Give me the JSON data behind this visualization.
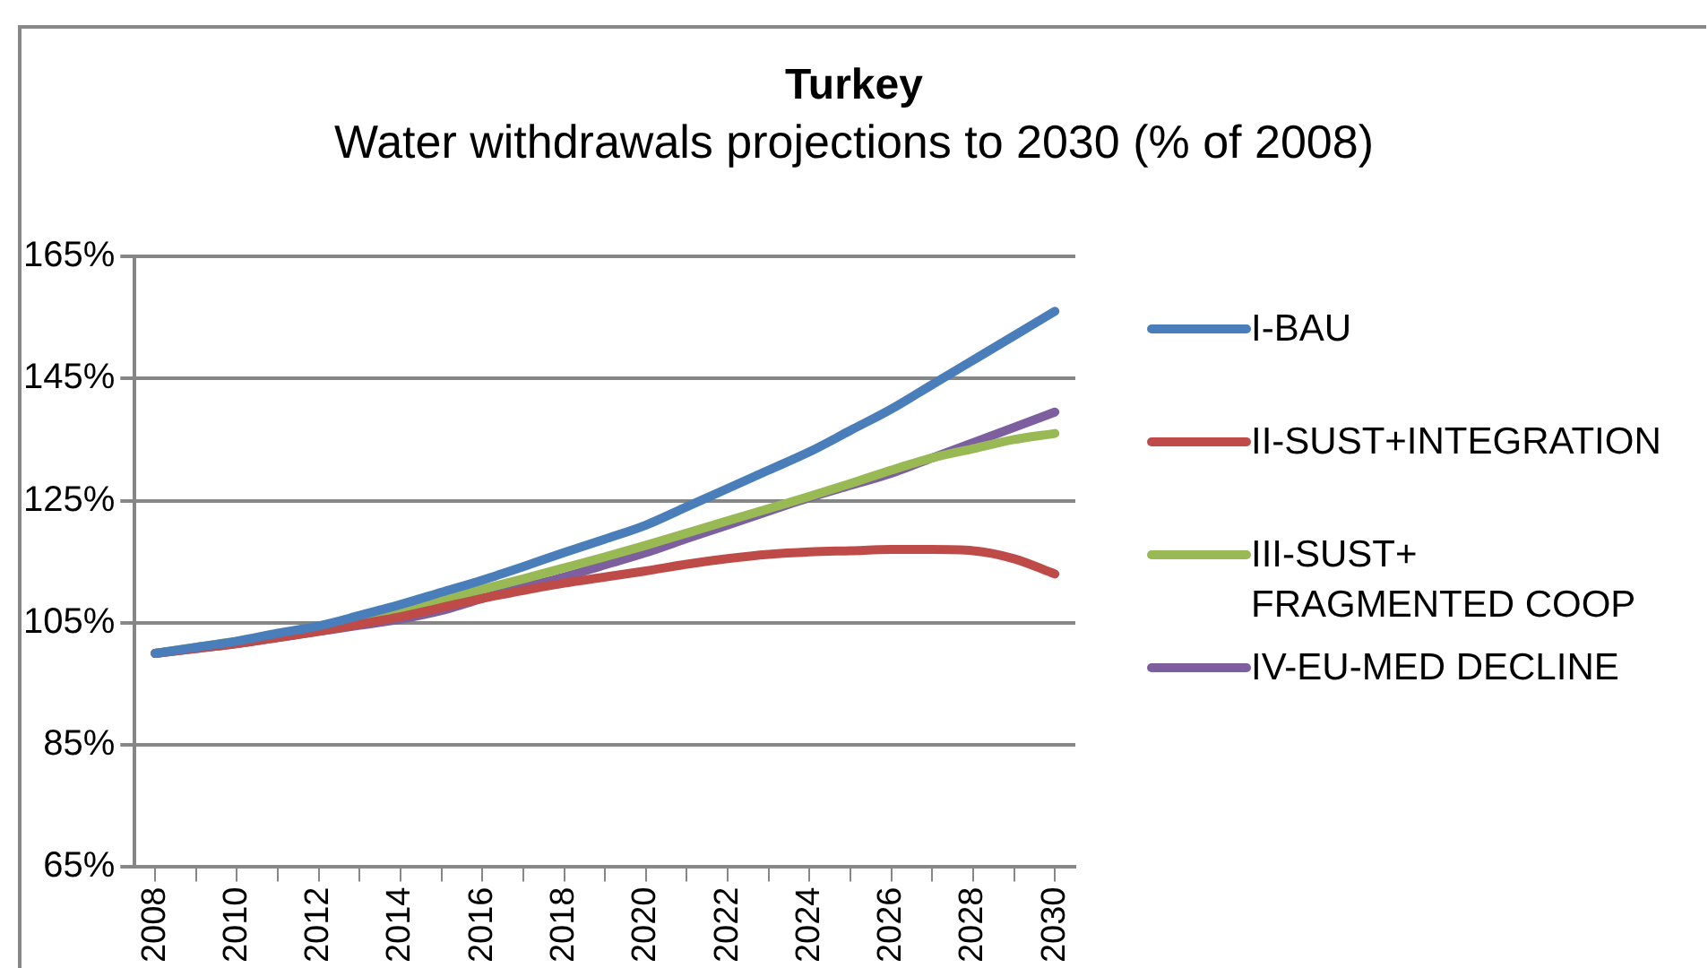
{
  "chart_data": {
    "type": "line",
    "title": "Turkey",
    "subtitle": "Water withdrawals projections to 2030 (% of 2008)",
    "categories": [
      "2008",
      null,
      "2010",
      null,
      "2012",
      null,
      "2014",
      null,
      "2016",
      null,
      "2018",
      null,
      "2020",
      null,
      "2022",
      null,
      "2024",
      null,
      "2026",
      null,
      "2028",
      null,
      "2030"
    ],
    "series": [
      {
        "name": "I-BAU",
        "color": "#4a7ebb",
        "values": [
          100,
          101,
          102,
          103.3,
          104.5,
          106.2,
          108,
          110,
          112,
          114.2,
          116.5,
          118.7,
          121,
          124,
          127,
          130,
          133,
          136.5,
          140,
          144,
          148,
          152,
          156
        ]
      },
      {
        "name": "II-SUST+INTEGRATION",
        "color": "#be4b48",
        "values": [
          100,
          100.8,
          101.6,
          102.6,
          103.6,
          104.8,
          106,
          107.5,
          109,
          110.3,
          111.5,
          112.5,
          113.5,
          114.6,
          115.5,
          116.2,
          116.6,
          116.8,
          117,
          117,
          116.8,
          115.5,
          113
        ]
      },
      {
        "name": "III-SUST+ FRAGMENTED COOP",
        "color": "#98b954",
        "values": [
          100,
          101,
          102,
          103.2,
          104.4,
          105.7,
          107,
          108.7,
          110.5,
          112.2,
          114,
          115.8,
          117.7,
          119.7,
          121.7,
          123.7,
          125.7,
          127.8,
          130,
          132,
          133.5,
          135,
          136
        ]
      },
      {
        "name": "IV-EU-MED DECLINE",
        "color": "#7d5fa0",
        "values": [
          100,
          100.8,
          101.6,
          102.6,
          103.6,
          104.6,
          105.6,
          107,
          109,
          110.8,
          112.5,
          114.5,
          116.5,
          118.8,
          121,
          123.3,
          125.5,
          127.5,
          129.5,
          132,
          134.5,
          137,
          139.5
        ]
      }
    ],
    "ylim": [
      65,
      165
    ],
    "yticks": [
      {
        "value": 65,
        "label": "65%"
      },
      {
        "value": 85,
        "label": "85%"
      },
      {
        "value": 105,
        "label": "105%"
      },
      {
        "value": 125,
        "label": "125%"
      },
      {
        "value": 145,
        "label": "145%"
      },
      {
        "value": 165,
        "label": "165%"
      }
    ],
    "grid": "y",
    "legend": "right",
    "marker": "none",
    "line_style": "solid"
  }
}
